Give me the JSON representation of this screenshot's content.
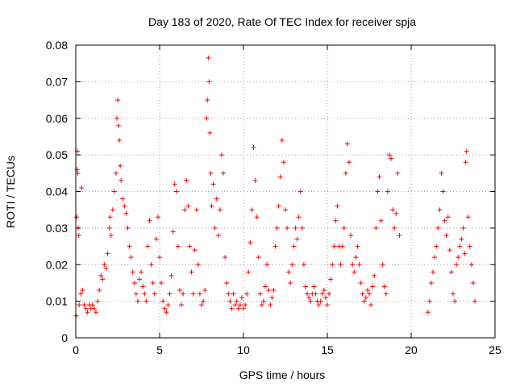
{
  "chart_data": {
    "type": "scatter",
    "title": "Day 183 of 2020, Rate Of TEC Index for receiver spja",
    "xlabel": "GPS time / hours",
    "ylabel": "ROTI / TECUs",
    "xlim": [
      0,
      25
    ],
    "ylim": [
      0,
      0.08
    ],
    "xticks": [
      0,
      5,
      10,
      15,
      20,
      25
    ],
    "xtick_labels": [
      "0",
      "5",
      "10",
      "15",
      "20",
      "25"
    ],
    "yticks": [
      0,
      0.01,
      0.02,
      0.03,
      0.04,
      0.05,
      0.06,
      0.07,
      0.08
    ],
    "ytick_labels": [
      "0",
      "0.01",
      "0.02",
      "0.03",
      "0.04",
      "0.05",
      "0.06",
      "0.07",
      "0.08"
    ],
    "grid": true,
    "marker": "+",
    "color": "#ff0000",
    "series": [
      {
        "points": [
          [
            0.02,
            0.006
          ],
          [
            0.05,
            0.033
          ],
          [
            0.08,
            0.046
          ],
          [
            0.1,
            0.051
          ],
          [
            0.12,
            0.045
          ],
          [
            0.15,
            0.03
          ],
          [
            0.18,
            0.028
          ],
          [
            0.2,
            0.009
          ],
          [
            0.3,
            0.012
          ],
          [
            0.35,
            0.041
          ],
          [
            0.4,
            0.013
          ],
          [
            0.5,
            0.009
          ],
          [
            0.6,
            0.008
          ],
          [
            0.7,
            0.007
          ],
          [
            0.8,
            0.009
          ],
          [
            0.9,
            0.008
          ],
          [
            1.0,
            0.009
          ],
          [
            1.1,
            0.008
          ],
          [
            1.2,
            0.007
          ],
          [
            1.3,
            0.01
          ],
          [
            1.4,
            0.013
          ],
          [
            1.5,
            0.017
          ],
          [
            1.6,
            0.016
          ],
          [
            1.7,
            0.02
          ],
          [
            1.8,
            0.019
          ],
          [
            1.9,
            0.023
          ],
          [
            2.0,
            0.03
          ],
          [
            2.05,
            0.033
          ],
          [
            2.1,
            0.028
          ],
          [
            2.2,
            0.035
          ],
          [
            2.3,
            0.04
          ],
          [
            2.4,
            0.045
          ],
          [
            2.45,
            0.06
          ],
          [
            2.5,
            0.065
          ],
          [
            2.55,
            0.058
          ],
          [
            2.6,
            0.054
          ],
          [
            2.65,
            0.047
          ],
          [
            2.7,
            0.043
          ],
          [
            2.8,
            0.038
          ],
          [
            2.9,
            0.036
          ],
          [
            3.0,
            0.034
          ],
          [
            3.1,
            0.03
          ],
          [
            3.2,
            0.025
          ],
          [
            3.3,
            0.022
          ],
          [
            3.4,
            0.018
          ],
          [
            3.5,
            0.015
          ],
          [
            3.6,
            0.012
          ],
          [
            3.7,
            0.01
          ],
          [
            3.8,
            0.016
          ],
          [
            3.9,
            0.018
          ],
          [
            4.0,
            0.014
          ],
          [
            4.1,
            0.012
          ],
          [
            4.2,
            0.01
          ],
          [
            4.3,
            0.025
          ],
          [
            4.4,
            0.032
          ],
          [
            4.5,
            0.02
          ],
          [
            4.6,
            0.015
          ],
          [
            4.7,
            0.012
          ],
          [
            4.8,
            0.027
          ],
          [
            4.9,
            0.033
          ],
          [
            5.0,
            0.022
          ],
          [
            5.1,
            0.015
          ],
          [
            5.2,
            0.01
          ],
          [
            5.3,
            0.008
          ],
          [
            5.4,
            0.007
          ],
          [
            5.5,
            0.009
          ],
          [
            5.6,
            0.012
          ],
          [
            5.7,
            0.017
          ],
          [
            5.8,
            0.029
          ],
          [
            5.9,
            0.042
          ],
          [
            6.0,
            0.04
          ],
          [
            6.1,
            0.025
          ],
          [
            6.2,
            0.013
          ],
          [
            6.3,
            0.009
          ],
          [
            6.4,
            0.012
          ],
          [
            6.5,
            0.035
          ],
          [
            6.6,
            0.043
          ],
          [
            6.7,
            0.036
          ],
          [
            6.8,
            0.025
          ],
          [
            6.9,
            0.018
          ],
          [
            7.0,
            0.012
          ],
          [
            7.1,
            0.024
          ],
          [
            7.2,
            0.035
          ],
          [
            7.3,
            0.02
          ],
          [
            7.4,
            0.012
          ],
          [
            7.5,
            0.009
          ],
          [
            7.6,
            0.01
          ],
          [
            7.7,
            0.013
          ],
          [
            7.8,
            0.06
          ],
          [
            7.85,
            0.065
          ],
          [
            7.9,
            0.0765
          ],
          [
            7.95,
            0.07
          ],
          [
            8.0,
            0.056
          ],
          [
            8.05,
            0.045
          ],
          [
            8.1,
            0.036
          ],
          [
            8.2,
            0.042
          ],
          [
            8.3,
            0.03
          ],
          [
            8.4,
            0.038
          ],
          [
            8.5,
            0.028
          ],
          [
            8.6,
            0.035
          ],
          [
            8.7,
            0.05
          ],
          [
            8.8,
            0.045
          ],
          [
            8.9,
            0.022
          ],
          [
            9.0,
            0.015
          ],
          [
            9.1,
            0.012
          ],
          [
            9.2,
            0.01
          ],
          [
            9.3,
            0.008
          ],
          [
            9.4,
            0.012
          ],
          [
            9.5,
            0.009
          ],
          [
            9.6,
            0.01
          ],
          [
            9.7,
            0.008
          ],
          [
            9.8,
            0.009
          ],
          [
            9.9,
            0.011
          ],
          [
            10.0,
            0.008
          ],
          [
            10.1,
            0.009
          ],
          [
            10.2,
            0.012
          ],
          [
            10.3,
            0.018
          ],
          [
            10.4,
            0.026
          ],
          [
            10.5,
            0.035
          ],
          [
            10.6,
            0.052
          ],
          [
            10.7,
            0.043
          ],
          [
            10.8,
            0.033
          ],
          [
            10.9,
            0.022
          ],
          [
            11.0,
            0.012
          ],
          [
            11.1,
            0.009
          ],
          [
            11.2,
            0.01
          ],
          [
            11.3,
            0.014
          ],
          [
            11.4,
            0.02
          ],
          [
            11.5,
            0.013
          ],
          [
            11.6,
            0.009
          ],
          [
            11.7,
            0.011
          ],
          [
            11.8,
            0.013
          ],
          [
            11.9,
            0.025
          ],
          [
            12.0,
            0.03
          ],
          [
            12.1,
            0.036
          ],
          [
            12.2,
            0.044
          ],
          [
            12.3,
            0.054
          ],
          [
            12.4,
            0.048
          ],
          [
            12.5,
            0.035
          ],
          [
            12.6,
            0.03
          ],
          [
            12.7,
            0.018
          ],
          [
            12.8,
            0.015
          ],
          [
            12.9,
            0.02
          ],
          [
            13.0,
            0.025
          ],
          [
            13.1,
            0.03
          ],
          [
            13.2,
            0.027
          ],
          [
            13.3,
            0.033
          ],
          [
            13.4,
            0.04
          ],
          [
            13.5,
            0.03
          ],
          [
            13.6,
            0.02
          ],
          [
            13.7,
            0.014
          ],
          [
            13.8,
            0.012
          ],
          [
            13.9,
            0.011
          ],
          [
            14.0,
            0.01
          ],
          [
            14.1,
            0.012
          ],
          [
            14.2,
            0.014
          ],
          [
            14.3,
            0.012
          ],
          [
            14.4,
            0.01
          ],
          [
            14.5,
            0.009
          ],
          [
            14.6,
            0.01
          ],
          [
            14.7,
            0.012
          ],
          [
            14.8,
            0.013
          ],
          [
            14.9,
            0.011
          ],
          [
            15.0,
            0.009
          ],
          [
            15.1,
            0.012
          ],
          [
            15.2,
            0.016
          ],
          [
            15.3,
            0.02
          ],
          [
            15.4,
            0.025
          ],
          [
            15.5,
            0.032
          ],
          [
            15.6,
            0.036
          ],
          [
            15.7,
            0.025
          ],
          [
            15.8,
            0.02
          ],
          [
            15.9,
            0.025
          ],
          [
            16.0,
            0.03
          ],
          [
            16.1,
            0.045
          ],
          [
            16.2,
            0.053
          ],
          [
            16.3,
            0.048
          ],
          [
            16.4,
            0.028
          ],
          [
            16.5,
            0.02
          ],
          [
            16.6,
            0.018
          ],
          [
            16.7,
            0.022
          ],
          [
            16.8,
            0.025
          ],
          [
            16.9,
            0.02
          ],
          [
            17.0,
            0.015
          ],
          [
            17.1,
            0.012
          ],
          [
            17.2,
            0.01
          ],
          [
            17.3,
            0.011
          ],
          [
            17.4,
            0.013
          ],
          [
            17.5,
            0.012
          ],
          [
            17.6,
            0.009
          ],
          [
            17.7,
            0.014
          ],
          [
            17.8,
            0.017
          ],
          [
            17.9,
            0.03
          ],
          [
            18.0,
            0.04
          ],
          [
            18.1,
            0.044
          ],
          [
            18.2,
            0.032
          ],
          [
            18.3,
            0.02
          ],
          [
            18.4,
            0.014
          ],
          [
            18.5,
            0.012
          ],
          [
            18.6,
            0.04
          ],
          [
            18.7,
            0.05
          ],
          [
            18.8,
            0.049
          ],
          [
            18.9,
            0.035
          ],
          [
            19.0,
            0.03
          ],
          [
            19.1,
            0.034
          ],
          [
            19.2,
            0.045
          ],
          [
            19.3,
            0.028
          ],
          [
            21.0,
            0.007
          ],
          [
            21.1,
            0.01
          ],
          [
            21.2,
            0.015
          ],
          [
            21.3,
            0.018
          ],
          [
            21.4,
            0.022
          ],
          [
            21.5,
            0.025
          ],
          [
            21.6,
            0.03
          ],
          [
            21.7,
            0.035
          ],
          [
            21.8,
            0.045
          ],
          [
            21.9,
            0.04
          ],
          [
            22.0,
            0.032
          ],
          [
            22.1,
            0.028
          ],
          [
            22.2,
            0.033
          ],
          [
            22.3,
            0.024
          ],
          [
            22.4,
            0.018
          ],
          [
            22.5,
            0.012
          ],
          [
            22.6,
            0.01
          ],
          [
            22.7,
            0.02
          ],
          [
            22.8,
            0.022
          ],
          [
            22.9,
            0.025
          ],
          [
            23.0,
            0.027
          ],
          [
            23.1,
            0.03
          ],
          [
            23.2,
            0.023
          ],
          [
            23.25,
            0.048
          ],
          [
            23.3,
            0.051
          ],
          [
            23.4,
            0.033
          ],
          [
            23.5,
            0.025
          ],
          [
            23.6,
            0.02
          ],
          [
            23.7,
            0.015
          ],
          [
            23.8,
            0.01
          ]
        ]
      }
    ]
  }
}
